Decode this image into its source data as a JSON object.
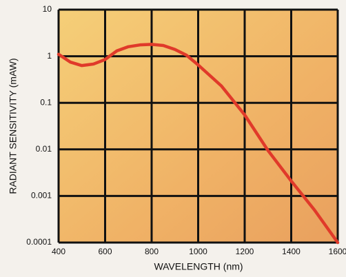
{
  "chart_data": {
    "type": "line",
    "x_label": "WAVELENGTH (nm)",
    "y_label": "RADIANT SENSITIVITY (mAW)",
    "x": [
      400,
      450,
      500,
      550,
      600,
      650,
      700,
      750,
      800,
      850,
      900,
      950,
      1000,
      1100,
      1200,
      1300,
      1400,
      1500,
      1600
    ],
    "series": [
      {
        "color": "#e03a2a",
        "values": [
          1.1,
          0.75,
          0.63,
          0.68,
          0.85,
          1.3,
          1.6,
          1.75,
          1.8,
          1.7,
          1.4,
          1.05,
          0.65,
          0.23,
          0.055,
          0.0095,
          0.0021,
          0.0005,
          0.0001
        ]
      }
    ],
    "xlim": [
      400,
      1600
    ],
    "xticks": [
      400,
      600,
      800,
      1000,
      1200,
      1400,
      1600
    ],
    "ylim": [
      0.0001,
      10
    ],
    "yticks": [
      0.0001,
      0.001,
      0.01,
      0.1,
      1,
      10
    ],
    "ylog": true,
    "grid": true
  }
}
